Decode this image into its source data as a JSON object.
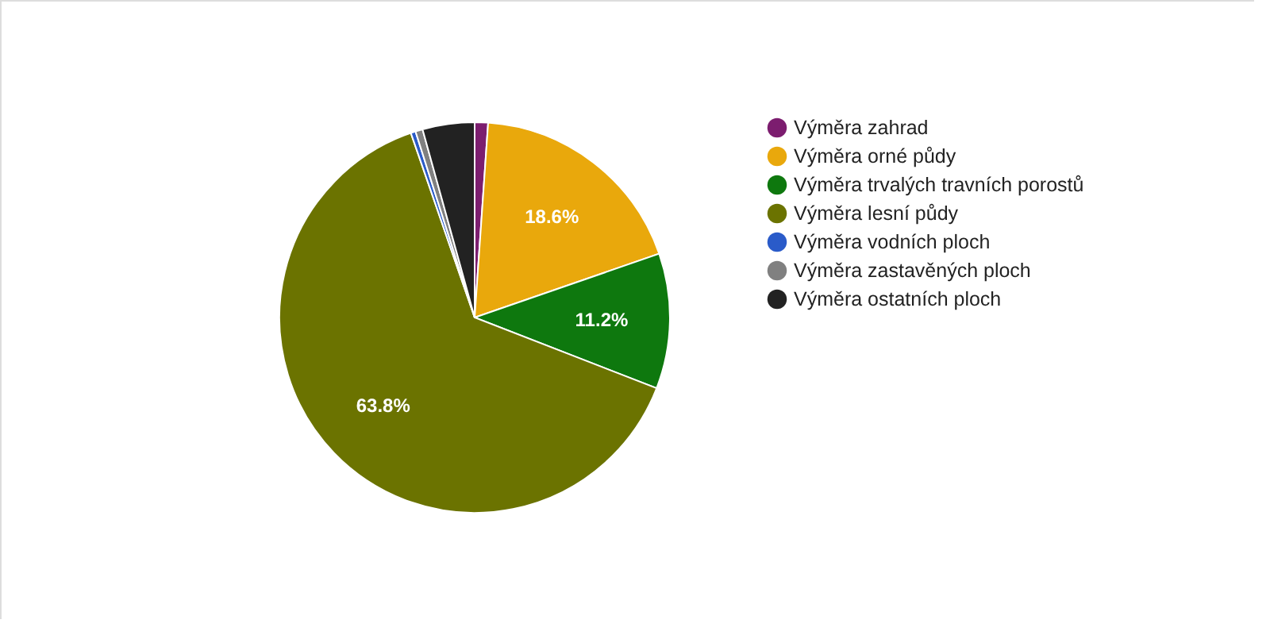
{
  "chart_data": {
    "type": "pie",
    "categories": [
      "Výměra zahrad",
      "Výměra orné půdy",
      "Výměra trvalých travních porostů",
      "Výměra lesní půdy",
      "Výměra vodních ploch",
      "Výměra zastavěných ploch",
      "Výměra ostatních ploch"
    ],
    "values": [
      1.1,
      18.6,
      11.2,
      63.8,
      0.4,
      0.6,
      4.3
    ],
    "colors": [
      "#7c1d6f",
      "#e9a80c",
      "#0e780e",
      "#6b7300",
      "#2a5bc9",
      "#808080",
      "#222222"
    ],
    "value_labels": [
      null,
      "18.6%",
      "11.2%",
      "63.8%",
      null,
      null,
      null
    ],
    "legend": "right"
  }
}
